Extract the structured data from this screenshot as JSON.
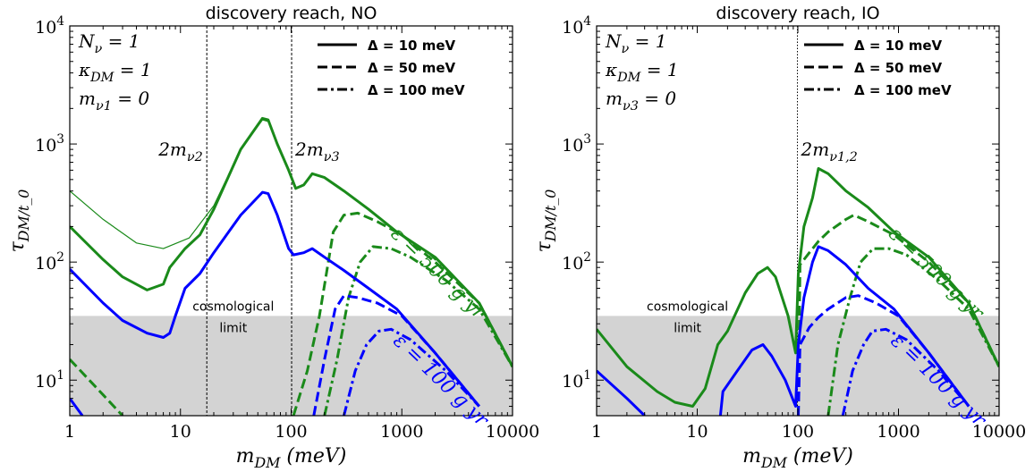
{
  "chart_data": [
    {
      "type": "line",
      "title": "discovery reach, NO",
      "xlabel": "m_DM (meV)",
      "ylabel": "τ_DM/t_0",
      "xscale": "log",
      "yscale": "log",
      "xlim": [
        1,
        10000
      ],
      "ylim": [
        5,
        10000
      ],
      "xtick_labels": [
        "1",
        "10",
        "100",
        "1000",
        "10000"
      ],
      "ytick_labels": [
        "10^1",
        "10^2",
        "10^3",
        "10^4"
      ],
      "params": [
        "N_ν = 1",
        "κ_DM = 1",
        "m_ν1 = 0"
      ],
      "legend": {
        "position": "top-right",
        "entries": [
          {
            "label": "Δ = 10 meV",
            "dash": "solid"
          },
          {
            "label": "Δ = 50 meV",
            "dash": "dashed"
          },
          {
            "label": "Δ = 100 meV",
            "dash": "dashdot"
          }
        ]
      },
      "cosmological_limit": {
        "label_line1": "cosmological",
        "label_line2": "limit",
        "y_max": 35,
        "color": "#d3d3d3"
      },
      "thresholds": [
        {
          "label": "2m_ν2",
          "x": 17.3,
          "style": "dashed"
        },
        {
          "label": "2m_ν3",
          "x": 101,
          "style": "dashed"
        }
      ],
      "annotations": [
        {
          "text": "ε = 500 g yr",
          "color": "#1a8a1a"
        },
        {
          "text": "ε = 100 g yr",
          "color": "#0000ff"
        }
      ],
      "series": [
        {
          "exposure": "500 g yr",
          "delta": "10 meV",
          "color": "#1a8a1a",
          "dash": "solid",
          "width": 1.2,
          "points": [
            [
              1,
              400
            ],
            [
              2,
              230
            ],
            [
              4,
              145
            ],
            [
              7,
              130
            ],
            [
              12,
              160
            ],
            [
              20,
              300
            ],
            [
              35,
              900
            ],
            [
              55,
              1600
            ],
            [
              62,
              1550
            ],
            [
              75,
              1000
            ],
            [
              95,
              600
            ],
            [
              110,
              420
            ],
            [
              130,
              450
            ],
            [
              155,
              560
            ],
            [
              200,
              520
            ],
            [
              300,
              400
            ],
            [
              500,
              280
            ],
            [
              900,
              180
            ],
            [
              2000,
              110
            ],
            [
              5000,
              45
            ],
            [
              10000,
              13
            ]
          ]
        },
        {
          "exposure": "500 g yr",
          "delta": "10 meV",
          "color": "#1a8a1a",
          "dash": "solid",
          "width": 3,
          "points": [
            [
              1,
              200
            ],
            [
              2,
              105
            ],
            [
              3,
              75
            ],
            [
              5,
              58
            ],
            [
              7,
              65
            ],
            [
              8,
              90
            ],
            [
              11,
              130
            ],
            [
              15,
              170
            ],
            [
              20,
              280
            ],
            [
              35,
              900
            ],
            [
              55,
              1650
            ],
            [
              62,
              1600
            ],
            [
              75,
              1000
            ],
            [
              95,
              600
            ],
            [
              110,
              420
            ],
            [
              130,
              450
            ],
            [
              155,
              560
            ],
            [
              200,
              520
            ],
            [
              300,
              400
            ],
            [
              500,
              280
            ],
            [
              900,
              180
            ],
            [
              2000,
              110
            ],
            [
              5000,
              45
            ],
            [
              10000,
              13
            ]
          ]
        },
        {
          "exposure": "500 g yr",
          "delta": "50 meV",
          "color": "#1a8a1a",
          "dash": "dashed",
          "width": 3,
          "points": [
            [
              1,
              15
            ],
            [
              1.5,
              10
            ],
            [
              2,
              7.5
            ],
            [
              3,
              5
            ]
          ]
        },
        {
          "exposure": "500 g yr",
          "delta": "50 meV",
          "color": "#1a8a1a",
          "dash": "dashed",
          "width": 3,
          "points": [
            [
              105,
              5
            ],
            [
              140,
              12
            ],
            [
              180,
              35
            ],
            [
              240,
              180
            ],
            [
              300,
              250
            ],
            [
              400,
              260
            ],
            [
              600,
              220
            ],
            [
              1000,
              170
            ],
            [
              2000,
              100
            ],
            [
              5000,
              45
            ],
            [
              10000,
              13
            ]
          ]
        },
        {
          "exposure": "500 g yr",
          "delta": "100 meV",
          "color": "#1a8a1a",
          "dash": "dashdot",
          "width": 3,
          "points": [
            [
              200,
              5
            ],
            [
              260,
              15
            ],
            [
              330,
              50
            ],
            [
              420,
              100
            ],
            [
              550,
              135
            ],
            [
              800,
              130
            ],
            [
              1200,
              110
            ],
            [
              2500,
              70
            ],
            [
              5000,
              40
            ],
            [
              10000,
              13
            ]
          ]
        },
        {
          "exposure": "100 g yr",
          "delta": "10 meV",
          "color": "#0000ff",
          "dash": "solid",
          "width": 3,
          "points": [
            [
              1,
              87
            ],
            [
              2,
              45
            ],
            [
              3,
              32
            ],
            [
              5,
              25
            ],
            [
              7,
              23
            ],
            [
              8,
              25
            ],
            [
              9,
              35
            ],
            [
              11,
              60
            ],
            [
              15,
              80
            ],
            [
              20,
              120
            ],
            [
              35,
              250
            ],
            [
              55,
              390
            ],
            [
              62,
              380
            ],
            [
              75,
              250
            ],
            [
              95,
              130
            ],
            [
              105,
              115
            ],
            [
              130,
              120
            ],
            [
              155,
              130
            ],
            [
              200,
              110
            ],
            [
              300,
              85
            ],
            [
              500,
              60
            ],
            [
              900,
              40
            ],
            [
              2000,
              17
            ],
            [
              5000,
              6
            ]
          ]
        },
        {
          "exposure": "100 g yr",
          "delta": "10 meV",
          "color": "#0000ff",
          "dash": "solid",
          "width": 3,
          "points": [
            [
              1,
              7
            ],
            [
              1.3,
              5
            ]
          ]
        },
        {
          "exposure": "100 g yr",
          "delta": "50 meV",
          "color": "#0000ff",
          "dash": "dashed",
          "width": 3,
          "points": [
            [
              160,
              5
            ],
            [
              200,
              15
            ],
            [
              250,
              40
            ],
            [
              300,
              52
            ],
            [
              400,
              50
            ],
            [
              600,
              45
            ],
            [
              1000,
              35
            ],
            [
              2000,
              17
            ],
            [
              5000,
              6
            ]
          ]
        },
        {
          "exposure": "100 g yr",
          "delta": "100 meV",
          "color": "#0000ff",
          "dash": "dashdot",
          "width": 3,
          "points": [
            [
              300,
              5
            ],
            [
              380,
              12
            ],
            [
              480,
              20
            ],
            [
              620,
              26
            ],
            [
              800,
              27
            ],
            [
              1200,
              22
            ],
            [
              2500,
              12
            ],
            [
              5000,
              6
            ]
          ]
        }
      ]
    },
    {
      "type": "line",
      "title": "discovery reach, IO",
      "xlabel": "m_DM (meV)",
      "ylabel": "τ_DM/t_0",
      "xscale": "log",
      "yscale": "log",
      "xlim": [
        1,
        10000
      ],
      "ylim": [
        5,
        10000
      ],
      "xtick_labels": [
        "1",
        "10",
        "100",
        "1000",
        "10000"
      ],
      "ytick_labels": [
        "10^1",
        "10^2",
        "10^3",
        "10^4"
      ],
      "params": [
        "N_ν = 1",
        "κ_DM = 1",
        "m_ν3 = 0"
      ],
      "legend": {
        "position": "top-right",
        "entries": [
          {
            "label": "Δ = 10 meV",
            "dash": "solid"
          },
          {
            "label": "Δ = 50 meV",
            "dash": "dashed"
          },
          {
            "label": "Δ = 100 meV",
            "dash": "dashdot"
          }
        ]
      },
      "cosmological_limit": {
        "label_line1": "cosmological",
        "label_line2": "limit",
        "y_max": 35,
        "color": "#d3d3d3"
      },
      "thresholds": [
        {
          "label": "2m_ν1,2",
          "x": 99,
          "style": "dotted"
        }
      ],
      "annotations": [
        {
          "text": "ε = 500 g yr",
          "color": "#1a8a1a"
        },
        {
          "text": "ε = 100 g yr",
          "color": "#0000ff"
        }
      ],
      "series": [
        {
          "exposure": "500 g yr",
          "delta": "10 meV",
          "color": "#1a8a1a",
          "dash": "solid",
          "width": 3,
          "points": [
            [
              1,
              27
            ],
            [
              2,
              13
            ],
            [
              4,
              8
            ],
            [
              6,
              6.5
            ],
            [
              9,
              6
            ],
            [
              12,
              8.5
            ],
            [
              16,
              20
            ],
            [
              20,
              26
            ],
            [
              30,
              55
            ],
            [
              40,
              80
            ],
            [
              50,
              90
            ],
            [
              60,
              75
            ],
            [
              80,
              35
            ],
            [
              95,
              17
            ],
            [
              101,
              80
            ],
            [
              115,
              200
            ],
            [
              140,
              350
            ],
            [
              160,
              620
            ],
            [
              200,
              560
            ],
            [
              300,
              400
            ],
            [
              500,
              290
            ],
            [
              900,
              180
            ],
            [
              2000,
              110
            ],
            [
              5000,
              45
            ],
            [
              10000,
              13
            ]
          ]
        },
        {
          "exposure": "500 g yr",
          "delta": "50 meV",
          "color": "#1a8a1a",
          "dash": "dashed",
          "width": 3,
          "points": [
            [
              101,
              5
            ],
            [
              105,
              95
            ],
            [
              130,
              120
            ],
            [
              160,
              150
            ],
            [
              200,
              180
            ],
            [
              300,
              230
            ],
            [
              360,
              250
            ],
            [
              500,
              220
            ],
            [
              900,
              170
            ],
            [
              2000,
              100
            ],
            [
              5000,
              45
            ],
            [
              10000,
              13
            ]
          ]
        },
        {
          "exposure": "500 g yr",
          "delta": "100 meV",
          "color": "#1a8a1a",
          "dash": "dashdot",
          "width": 3,
          "points": [
            [
              200,
              5
            ],
            [
              250,
              20
            ],
            [
              330,
              50
            ],
            [
              420,
              100
            ],
            [
              560,
              130
            ],
            [
              800,
              130
            ],
            [
              1200,
              115
            ],
            [
              2500,
              70
            ],
            [
              5000,
              40
            ],
            [
              10000,
              13
            ]
          ]
        },
        {
          "exposure": "100 g yr",
          "delta": "10 meV",
          "color": "#0000ff",
          "dash": "solid",
          "width": 3,
          "points": [
            [
              1,
              12
            ],
            [
              2,
              7
            ],
            [
              3,
              5
            ]
          ]
        },
        {
          "exposure": "100 g yr",
          "delta": "10 meV",
          "color": "#0000ff",
          "dash": "solid",
          "width": 3,
          "points": [
            [
              17,
              5
            ],
            [
              18,
              8
            ],
            [
              25,
              12
            ],
            [
              35,
              18
            ],
            [
              45,
              20
            ],
            [
              55,
              16
            ],
            [
              75,
              10
            ],
            [
              95,
              6
            ],
            [
              101,
              20
            ],
            [
              115,
              50
            ],
            [
              140,
              100
            ],
            [
              160,
              135
            ],
            [
              200,
              125
            ],
            [
              300,
              95
            ],
            [
              500,
              60
            ],
            [
              900,
              40
            ],
            [
              2000,
              17
            ],
            [
              5000,
              6
            ]
          ]
        },
        {
          "exposure": "100 g yr",
          "delta": "50 meV",
          "color": "#0000ff",
          "dash": "dashed",
          "width": 3,
          "points": [
            [
              101,
              5
            ],
            [
              105,
              20
            ],
            [
              130,
              28
            ],
            [
              160,
              34
            ],
            [
              200,
              40
            ],
            [
              300,
              50
            ],
            [
              400,
              52
            ],
            [
              600,
              45
            ],
            [
              1000,
              35
            ],
            [
              2000,
              17
            ],
            [
              5000,
              6
            ]
          ]
        },
        {
          "exposure": "100 g yr",
          "delta": "100 meV",
          "color": "#0000ff",
          "dash": "dashdot",
          "width": 3,
          "points": [
            [
              280,
              5
            ],
            [
              350,
              12
            ],
            [
              450,
              20
            ],
            [
              550,
              26
            ],
            [
              750,
              27
            ],
            [
              1200,
              22
            ],
            [
              2500,
              12
            ],
            [
              5000,
              6
            ]
          ]
        }
      ]
    }
  ]
}
